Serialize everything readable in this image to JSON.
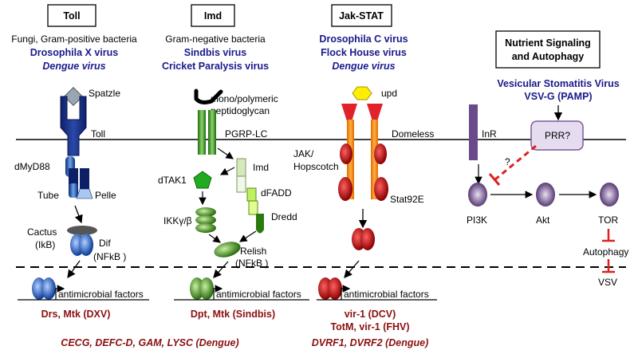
{
  "pathways": {
    "toll": {
      "title": "Toll",
      "inducer": "Fungi, Gram-positive bacteria",
      "virus1": "Drosophila X virus",
      "virus2": "Dengue virus",
      "ligand": "Spatzle",
      "receptor": "Toll",
      "adaptor": "dMyD88",
      "tube": "Tube",
      "pelle": "Pelle",
      "cactus": "Cactus",
      "cactus_alias": "(IkB)",
      "dif": "Dif",
      "dif_alias": "(NFkB )",
      "target": "antimicrobial factors",
      "output": "Drs, Mtk (DXV)"
    },
    "imd": {
      "title": "Imd",
      "inducer": "Gram-negative bacteria",
      "virus1": "Sindbis virus",
      "virus2": "Cricket Paralysis virus",
      "ligand_line1": "mono/polymeric",
      "ligand_line2": "peptidoglycan",
      "receptor": "PGRP-LC",
      "imd": "Imd",
      "dtak1": "dTAK1",
      "dfadd": "dFADD",
      "ikk": "IKKγ/β",
      "dredd": "Dredd",
      "relish": "Relish",
      "relish_alias": "(NFkB )",
      "target": "antimicrobial factors",
      "output": "Dpt, Mtk (Sindbis)"
    },
    "jak": {
      "title": "Jak-STAT",
      "virus1": "Drosophila C virus",
      "virus2": "Flock House virus",
      "virus3": "Dengue virus",
      "ligand": "upd",
      "receptor": "Domeless",
      "jak_line1": "JAK/",
      "jak_line2": "Hopscotch",
      "stat": "Stat92E",
      "target": "antimicrobial factors",
      "output1": "vir-1 (DCV)",
      "output2": "TotM, vir-1 (FHV)",
      "output3": "DVRF1, DVRF2 (Dengue)"
    },
    "nutrient": {
      "title_line1": "Nutrient Signaling",
      "title_line2": "and Autophagy",
      "virus1": "Vesicular Stomatitis Virus",
      "virus2": "VSV-G (PAMP)",
      "inr": "InR",
      "prr": "PRR?",
      "question": "?",
      "pi3k": "PI3K",
      "akt": "Akt",
      "tor": "TOR",
      "autophagy": "Autophagy",
      "vsv": "VSV"
    }
  },
  "dengue_output": "CECG, DEFC-D, GAM, LYSC (Dengue)"
}
